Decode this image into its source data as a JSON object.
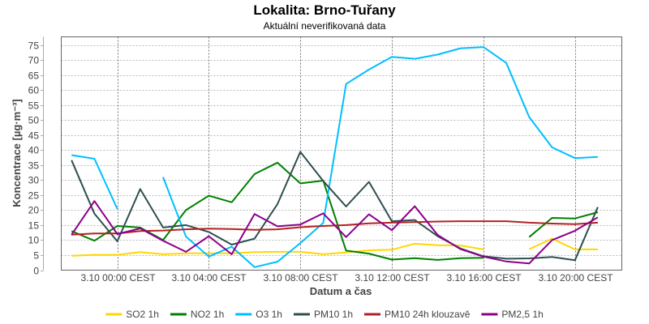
{
  "chart_data": {
    "type": "line",
    "title": "Lokalita: Brno-Tuřany",
    "subtitle": "Aktuální neverifikovaná data",
    "xlabel": "Datum a čas",
    "ylabel": "Koncentrace [µg·m⁻³]",
    "ylim": [
      0,
      77.7
    ],
    "yticks": [
      0,
      5,
      10,
      15,
      20,
      25,
      30,
      35,
      40,
      45,
      50,
      55,
      60,
      65,
      70,
      75
    ],
    "x_hours": [
      -2,
      -1,
      0,
      1,
      2,
      3,
      4,
      5,
      6,
      7,
      8,
      9,
      10,
      11,
      12,
      13,
      14,
      15,
      16,
      17,
      18,
      19,
      20,
      21
    ],
    "xlim_hours": [
      -2.45,
      22.05
    ],
    "xticks": [
      {
        "hour": 0,
        "label": "3.10 00:00 CEST"
      },
      {
        "hour": 4,
        "label": "3.10 04:00 CEST"
      },
      {
        "hour": 8,
        "label": "3.10 08:00 CEST"
      },
      {
        "hour": 12,
        "label": "3.10 12:00 CEST"
      },
      {
        "hour": 16,
        "label": "3.10 16:00 CEST"
      },
      {
        "hour": 20,
        "label": "3.10 20:00 CEST"
      }
    ],
    "grid": true,
    "legend_position": "bottom",
    "series": [
      {
        "name": "SO2 1h",
        "color": "#ffd700",
        "values": [
          4.8,
          5.1,
          5.1,
          6,
          5.3,
          5.6,
          5.6,
          5.6,
          6,
          6.1,
          6.1,
          5.3,
          5.9,
          6.6,
          6.8,
          8.8,
          8.3,
          8.2,
          6.9,
          null,
          7,
          10.5,
          6.9,
          6.9
        ]
      },
      {
        "name": "NO2 1h",
        "color": "#008000",
        "values": [
          13,
          9.8,
          14.7,
          14.2,
          10,
          20,
          24.8,
          22.6,
          32,
          35.8,
          28.9,
          29.8,
          6.5,
          5.5,
          3.5,
          4,
          3.4,
          4,
          4.1,
          null,
          11,
          17.4,
          17.2,
          19.3
        ]
      },
      {
        "name": "O3 1h",
        "color": "#00bfff",
        "values": [
          38.3,
          37.1,
          20.4,
          null,
          31,
          11.2,
          4.5,
          7.8,
          1,
          2.8,
          9,
          15.7,
          62,
          66.8,
          71,
          70.4,
          71.8,
          73.9,
          74.3,
          69,
          51,
          40.9,
          37.3,
          37.7
        ]
      },
      {
        "name": "PM10 1h",
        "color": "#2f4f4f",
        "values": [
          36.6,
          18.8,
          9.6,
          27,
          14.2,
          15,
          12.7,
          8.5,
          10.5,
          22,
          39.4,
          29.7,
          21.2,
          29.4,
          16.3,
          16.7,
          11.3,
          7.2,
          4.6,
          3.8,
          3.9,
          4.4,
          3.3,
          21
        ]
      },
      {
        "name": "PM10 24h klouzavě",
        "color": "#b22222",
        "values": [
          11.8,
          12.2,
          12.2,
          13,
          13.2,
          13.6,
          13.8,
          13.7,
          13.4,
          13.6,
          14.3,
          14.7,
          15,
          15.6,
          15.8,
          16,
          16.2,
          16.3,
          16.3,
          16.3,
          15.8,
          15.5,
          15.3,
          15.8
        ]
      },
      {
        "name": "PM2,5 1h",
        "color": "#8b008b",
        "values": [
          11.8,
          23,
          12,
          13.9,
          9.8,
          6.1,
          11.3,
          5.3,
          18.7,
          14.6,
          15.2,
          18.9,
          11,
          18.6,
          13.3,
          21.3,
          11.7,
          7,
          4.5,
          2.9,
          2.2,
          10,
          13.1,
          17.6
        ]
      }
    ]
  }
}
